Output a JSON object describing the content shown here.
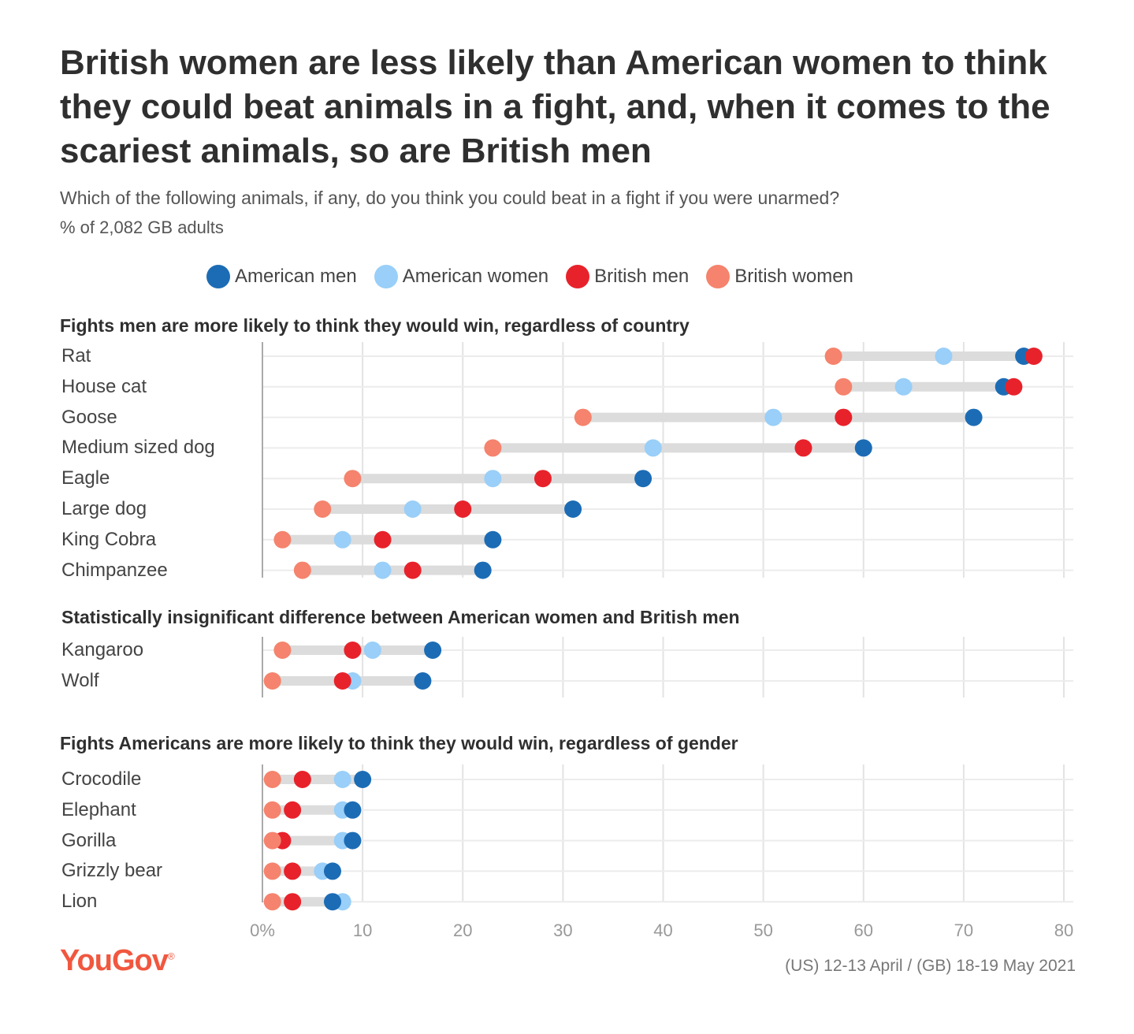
{
  "title": "British women are less likely than American women to think they could beat animals in a fight, and, when it comes to the scariest animals, so are British men",
  "subtitle": "Which of the following animals, if any, do you think you could beat in a fight if you were unarmed?",
  "unit_note": "% of 2,082 GB adults",
  "legend": [
    {
      "label": "American men",
      "color": "#1c6cb5"
    },
    {
      "label": "American women",
      "color": "#99cff8"
    },
    {
      "label": "British men",
      "color": "#e8222b"
    },
    {
      "label": "British women",
      "color": "#f5836d"
    }
  ],
  "sections": [
    {
      "title": "Fights men are more likely to think they would win, regardless of country"
    },
    {
      "title": "Statistically insignificant difference between American women and British men"
    },
    {
      "title": "Fights Americans are more likely to think they would win, regardless of gender"
    }
  ],
  "chart_data": {
    "type": "dot",
    "xlim": [
      0,
      80
    ],
    "x_ticks": [
      0,
      10,
      20,
      30,
      40,
      50,
      60,
      70,
      80
    ],
    "x_tick_labels": [
      "0%",
      "10",
      "20",
      "30",
      "40",
      "50",
      "60",
      "70",
      "80"
    ],
    "grid": true,
    "legend_position": "top",
    "series_names": [
      "American men",
      "American women",
      "British men",
      "British women"
    ],
    "groups": [
      {
        "section": 0,
        "rows": [
          {
            "label": "Rat",
            "values": [
              76,
              68,
              77,
              57
            ]
          },
          {
            "label": "House cat",
            "values": [
              74,
              64,
              75,
              58
            ]
          },
          {
            "label": "Goose",
            "values": [
              71,
              51,
              58,
              32
            ]
          },
          {
            "label": "Medium sized dog",
            "values": [
              60,
              39,
              54,
              23
            ]
          },
          {
            "label": "Eagle",
            "values": [
              38,
              23,
              28,
              9
            ]
          },
          {
            "label": "Large dog",
            "values": [
              31,
              15,
              20,
              6
            ]
          },
          {
            "label": "King Cobra",
            "values": [
              23,
              8,
              12,
              2
            ]
          },
          {
            "label": "Chimpanzee",
            "values": [
              22,
              12,
              15,
              4
            ]
          }
        ]
      },
      {
        "section": 1,
        "rows": [
          {
            "label": "Kangaroo",
            "values": [
              17,
              11,
              9,
              2
            ]
          },
          {
            "label": "Wolf",
            "values": [
              16,
              9,
              8,
              1
            ]
          }
        ]
      },
      {
        "section": 2,
        "rows": [
          {
            "label": "Crocodile",
            "values": [
              10,
              8,
              4,
              1
            ]
          },
          {
            "label": "Elephant",
            "values": [
              9,
              8,
              3,
              1
            ]
          },
          {
            "label": "Gorilla",
            "values": [
              9,
              8,
              2,
              1
            ]
          },
          {
            "label": "Grizzly bear",
            "values": [
              7,
              6,
              3,
              1
            ]
          },
          {
            "label": "Lion",
            "values": [
              7,
              8,
              3,
              1
            ]
          }
        ]
      }
    ]
  },
  "brand": "YouGov",
  "source": "(US) 12-13 April / (GB) 18-19 May 2021"
}
